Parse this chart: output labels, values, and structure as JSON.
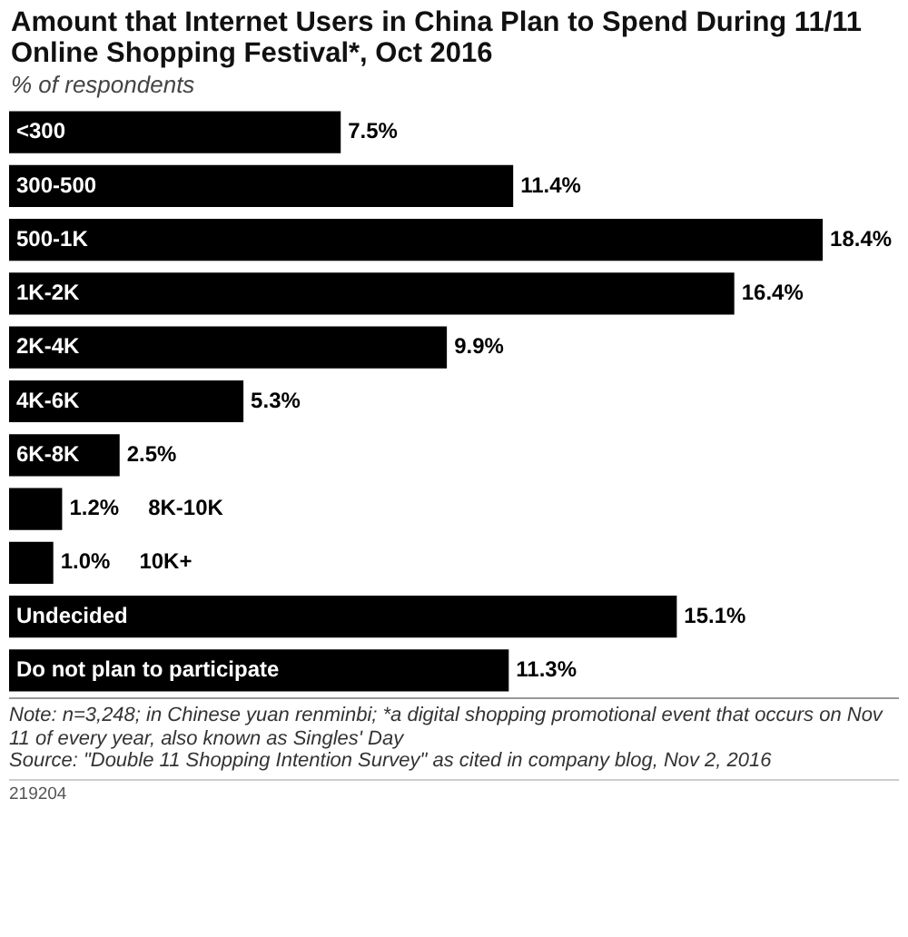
{
  "chart_data": {
    "type": "bar",
    "orientation": "horizontal",
    "title": "Amount that Internet Users in China Plan to Spend During 11/11 Online Shopping Festival*, Oct 2016",
    "subtitle": "% of respondents",
    "categories": [
      "<300",
      "300-500",
      "500-1K",
      "1K-2K",
      "2K-4K",
      "4K-6K",
      "6K-8K",
      "8K-10K",
      "10K+",
      "Undecided",
      "Do not plan to participate"
    ],
    "values": [
      7.5,
      11.4,
      18.4,
      16.4,
      9.9,
      5.3,
      2.5,
      1.2,
      1.0,
      15.1,
      11.3
    ],
    "value_labels": [
      "7.5%",
      "11.4%",
      "18.4%",
      "16.4%",
      "9.9%",
      "5.3%",
      "2.5%",
      "1.2%",
      "1.0%",
      "15.1%",
      "11.3%"
    ],
    "color": "#000000",
    "annotations": [
      "Note: n=3,248; in Chinese yuan renminbi; *a digital shopping promotional event that occurs on Nov 11 of every year, also known as Singles' Day",
      "Source: \"Double 11 Shopping Intention Survey\" as cited in company blog, Nov 2, 2016",
      "219204"
    ]
  }
}
